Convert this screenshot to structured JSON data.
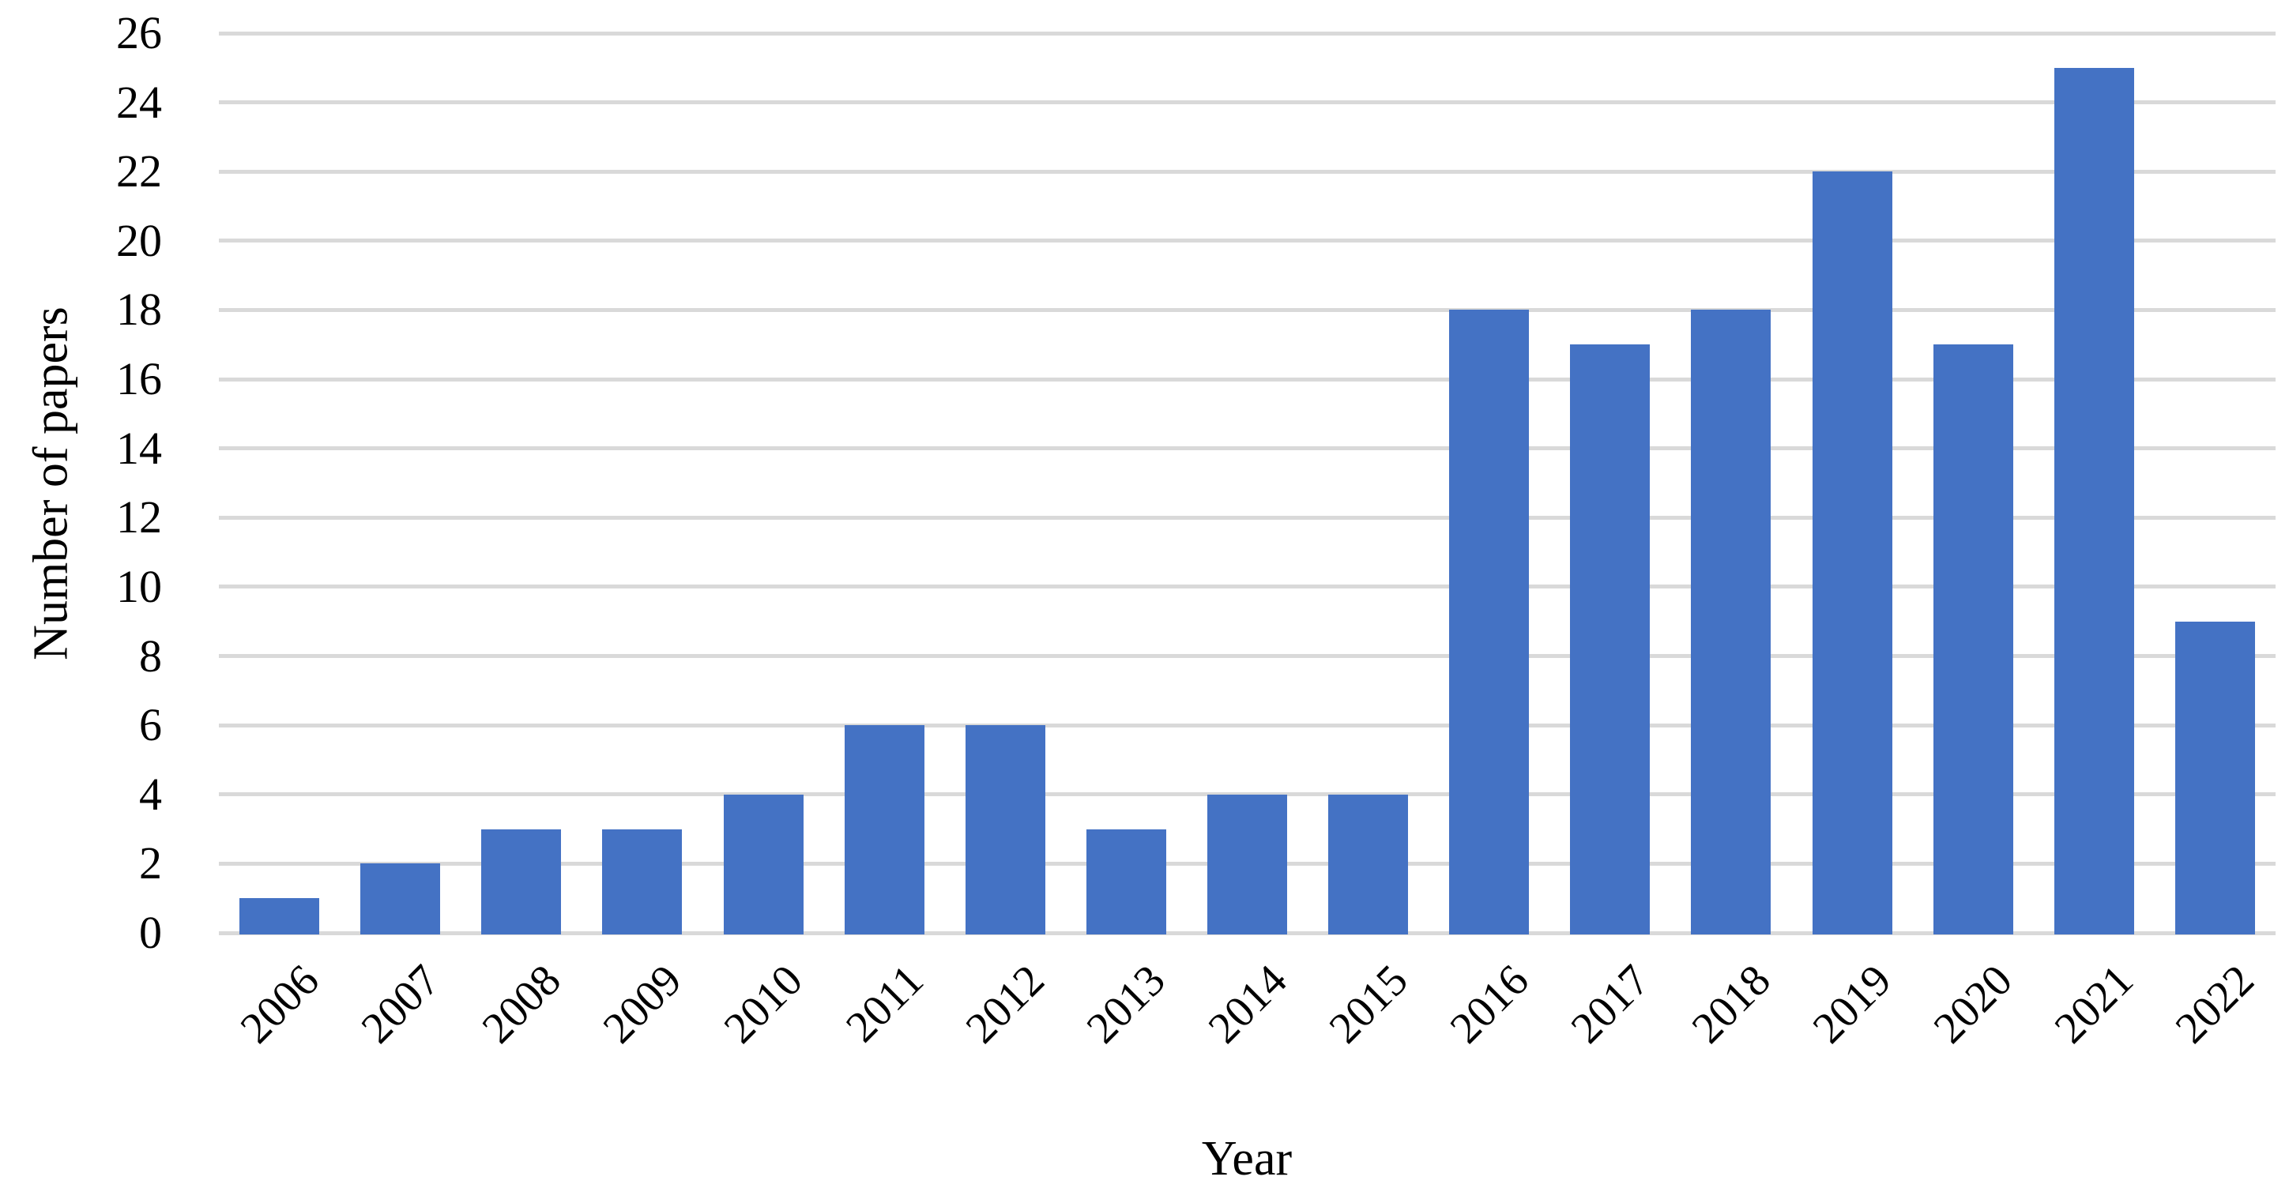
{
  "chart_data": {
    "type": "bar",
    "categories": [
      "2006",
      "2007",
      "2008",
      "2009",
      "2010",
      "2011",
      "2012",
      "2013",
      "2014",
      "2015",
      "2016",
      "2017",
      "2018",
      "2019",
      "2020",
      "2021",
      "2022"
    ],
    "values": [
      1,
      2,
      3,
      3,
      4,
      6,
      6,
      3,
      4,
      4,
      18,
      17,
      18,
      22,
      17,
      25,
      9
    ],
    "title": "",
    "xlabel": "Year",
    "ylabel": "Number of papers",
    "ylim": [
      0,
      26
    ],
    "ytick_step": 2,
    "grid": true,
    "legend_position": "none",
    "bar_color": "#4472C4",
    "gridline_color": "#D9D9D9",
    "text_color": "#000000"
  }
}
